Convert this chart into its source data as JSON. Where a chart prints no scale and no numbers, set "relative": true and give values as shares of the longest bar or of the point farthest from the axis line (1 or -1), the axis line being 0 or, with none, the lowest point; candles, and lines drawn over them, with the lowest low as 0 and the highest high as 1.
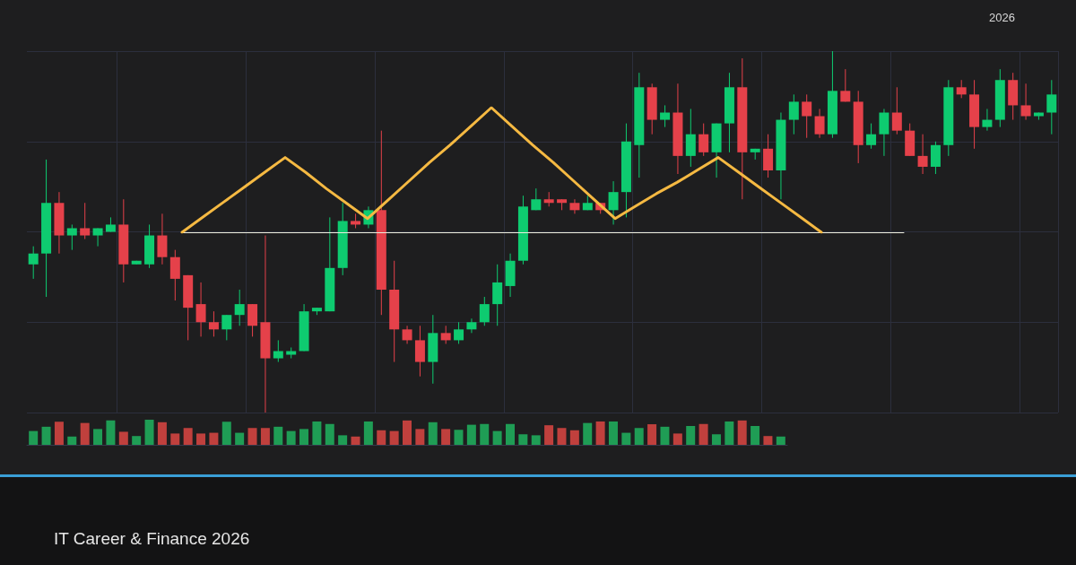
{
  "chart_data": [
    {
      "type": "candlestick",
      "relative": true,
      "grid": true,
      "annotations": [
        "2026",
        "IT Career & Finance 2026"
      ],
      "categories": [
        null,
        null,
        null,
        null,
        null,
        null,
        null,
        null,
        null,
        null,
        null,
        null,
        null,
        null,
        null,
        null,
        null,
        null,
        null,
        null,
        null,
        null,
        null,
        null,
        null,
        null,
        null,
        null,
        null,
        null,
        null,
        null,
        null,
        null,
        null,
        null,
        null,
        null,
        null,
        null,
        null,
        null,
        null,
        null,
        null,
        null,
        null,
        null,
        null,
        null,
        null,
        null,
        null,
        null,
        null,
        null,
        null,
        null,
        null,
        null,
        null,
        null,
        null,
        null,
        null,
        null,
        null,
        null,
        null,
        null,
        null,
        null,
        null,
        null,
        null,
        null,
        null,
        null,
        null,
        null
      ],
      "ohlc": [
        [
          0.41,
          0.46,
          0.37,
          0.44
        ],
        [
          0.44,
          0.7,
          0.32,
          0.58
        ],
        [
          0.58,
          0.61,
          0.44,
          0.49
        ],
        [
          0.49,
          0.52,
          0.45,
          0.51
        ],
        [
          0.51,
          0.58,
          0.48,
          0.49
        ],
        [
          0.49,
          0.51,
          0.46,
          0.51
        ],
        [
          0.5,
          0.54,
          0.5,
          0.52
        ],
        [
          0.52,
          0.59,
          0.36,
          0.41
        ],
        [
          0.41,
          0.42,
          0.41,
          0.42
        ],
        [
          0.41,
          0.52,
          0.4,
          0.49
        ],
        [
          0.49,
          0.55,
          0.41,
          0.43
        ],
        [
          0.43,
          0.45,
          0.31,
          0.37
        ],
        [
          0.38,
          0.38,
          0.2,
          0.29
        ],
        [
          0.3,
          0.36,
          0.21,
          0.25
        ],
        [
          0.25,
          0.28,
          0.21,
          0.23
        ],
        [
          0.23,
          0.27,
          0.2,
          0.27
        ],
        [
          0.27,
          0.34,
          0.24,
          0.3
        ],
        [
          0.3,
          0.3,
          0.21,
          0.24
        ],
        [
          0.25,
          0.49,
          0,
          0.15
        ],
        [
          0.15,
          0.2,
          0.14,
          0.17
        ],
        [
          0.16,
          0.18,
          0.15,
          0.17
        ],
        [
          0.17,
          0.3,
          0.17,
          0.28
        ],
        [
          0.28,
          0.29,
          0.27,
          0.29
        ],
        [
          0.28,
          0.54,
          0.28,
          0.4
        ],
        [
          0.4,
          0.58,
          0.38,
          0.53
        ],
        [
          0.53,
          0.55,
          0.51,
          0.52
        ],
        [
          0.52,
          0.57,
          0.51,
          0.56
        ],
        [
          0.56,
          0.78,
          0.27,
          0.34
        ],
        [
          0.34,
          0.42,
          0.14,
          0.23
        ],
        [
          0.23,
          0.24,
          0.19,
          0.2
        ],
        [
          0.2,
          0.24,
          0.1,
          0.14
        ],
        [
          0.14,
          0.27,
          0.08,
          0.22
        ],
        [
          0.22,
          0.24,
          0.19,
          0.2
        ],
        [
          0.2,
          0.25,
          0.19,
          0.23
        ],
        [
          0.23,
          0.26,
          0.22,
          0.25
        ],
        [
          0.25,
          0.32,
          0.24,
          0.3
        ],
        [
          0.3,
          0.41,
          0.24,
          0.36
        ],
        [
          0.35,
          0.44,
          0.32,
          0.42
        ],
        [
          0.42,
          0.6,
          0.41,
          0.57
        ],
        [
          0.56,
          0.62,
          0.56,
          0.59
        ],
        [
          0.59,
          0.61,
          0.57,
          0.58
        ],
        [
          0.59,
          0.59,
          0.56,
          0.58
        ],
        [
          0.58,
          0.59,
          0.55,
          0.56
        ],
        [
          0.56,
          0.6,
          0.56,
          0.58
        ],
        [
          0.58,
          0.58,
          0.55,
          0.56
        ],
        [
          0.56,
          0.64,
          0.52,
          0.61
        ],
        [
          0.61,
          0.8,
          0.54,
          0.75
        ],
        [
          0.74,
          0.94,
          0.65,
          0.9
        ],
        [
          0.9,
          0.91,
          0.77,
          0.81
        ],
        [
          0.81,
          0.85,
          0.79,
          0.83
        ],
        [
          0.83,
          0.91,
          0.66,
          0.71
        ],
        [
          0.71,
          0.84,
          0.68,
          0.77
        ],
        [
          0.77,
          0.8,
          0.71,
          0.72
        ],
        [
          0.72,
          0.8,
          0.65,
          0.8
        ],
        [
          0.8,
          0.94,
          0.72,
          0.9
        ],
        [
          0.9,
          0.98,
          0.59,
          0.72
        ],
        [
          0.72,
          0.73,
          0.7,
          0.73
        ],
        [
          0.73,
          0.77,
          0.65,
          0.67
        ],
        [
          0.67,
          0.83,
          0.59,
          0.81
        ],
        [
          0.81,
          0.88,
          0.77,
          0.86
        ],
        [
          0.86,
          0.88,
          0.76,
          0.82
        ],
        [
          0.82,
          0.84,
          0.76,
          0.77
        ],
        [
          0.77,
          1,
          0.76,
          0.89
        ],
        [
          0.89,
          0.95,
          0.86,
          0.86
        ],
        [
          0.86,
          0.89,
          0.69,
          0.74
        ],
        [
          0.74,
          0.8,
          0.73,
          0.77
        ],
        [
          0.77,
          0.84,
          0.71,
          0.83
        ],
        [
          0.83,
          0.9,
          0.77,
          0.78
        ],
        [
          0.78,
          0.8,
          0.71,
          0.71
        ],
        [
          0.71,
          0.77,
          0.66,
          0.68
        ],
        [
          0.68,
          0.75,
          0.66,
          0.74
        ],
        [
          0.74,
          0.92,
          0.71,
          0.9
        ],
        [
          0.9,
          0.92,
          0.87,
          0.88
        ],
        [
          0.88,
          0.92,
          0.73,
          0.79
        ],
        [
          0.79,
          0.84,
          0.78,
          0.81
        ],
        [
          0.81,
          0.95,
          0.79,
          0.92
        ],
        [
          0.92,
          0.94,
          0.81,
          0.85
        ],
        [
          0.85,
          0.91,
          0.81,
          0.82
        ],
        [
          0.82,
          0.83,
          0.81,
          0.83
        ],
        [
          0.83,
          0.92,
          0.77,
          0.88
        ]
      ]
    },
    {
      "type": "bar",
      "relative": true,
      "categories": [
        null,
        null,
        null,
        null,
        null,
        null,
        null,
        null,
        null,
        null,
        null,
        null,
        null,
        null,
        null,
        null,
        null,
        null,
        null,
        null,
        null,
        null,
        null,
        null,
        null,
        null,
        null,
        null,
        null,
        null,
        null,
        null,
        null,
        null,
        null,
        null,
        null,
        null,
        null,
        null,
        null,
        null,
        null,
        null,
        null,
        null,
        null,
        null,
        null,
        null,
        null,
        null,
        null,
        null,
        null,
        null,
        null,
        null,
        null
      ],
      "values": [
        0.55,
        0.72,
        0.92,
        0.33,
        0.87,
        0.63,
        0.97,
        0.52,
        0.35,
        1,
        0.9,
        0.45,
        0.67,
        0.45,
        0.48,
        0.92,
        0.48,
        0.67,
        0.67,
        0.72,
        0.55,
        0.63,
        0.93,
        0.83,
        0.38,
        0.33,
        0.93,
        0.58,
        0.55,
        0.97,
        0.63,
        0.9,
        0.63,
        0.6,
        0.8,
        0.83,
        0.55,
        0.83,
        0.42,
        0.38,
        0.78,
        0.67,
        0.58,
        0.87,
        0.93,
        0.93,
        0.48,
        0.67,
        0.82,
        0.72,
        0.45,
        0.75,
        0.83,
        0.42,
        0.93,
        0.97,
        0.75,
        0.35,
        0.33
      ],
      "colors": [
        "#1f9d55",
        "#1f9d55",
        "#c0403d",
        "#1f9d55",
        "#c0403d",
        "#1f9d55",
        "#1f9d55",
        "#c0403d",
        "#1f9d55",
        "#1f9d55",
        "#c0403d",
        "#c0403d",
        "#c0403d",
        "#c0403d",
        "#c0403d",
        "#1f9d55",
        "#1f9d55",
        "#c0403d",
        "#c0403d",
        "#1f9d55",
        "#1f9d55",
        "#1f9d55",
        "#1f9d55",
        "#1f9d55",
        "#1f9d55",
        "#c0403d",
        "#1f9d55",
        "#c0403d",
        "#c0403d",
        "#c0403d",
        "#c0403d",
        "#1f9d55",
        "#c0403d",
        "#1f9d55",
        "#1f9d55",
        "#1f9d55",
        "#1f9d55",
        "#1f9d55",
        "#1f9d55",
        "#1f9d55",
        "#c0403d",
        "#c0403d",
        "#c0403d",
        "#1f9d55",
        "#c0403d",
        "#1f9d55",
        "#1f9d55",
        "#1f9d55",
        "#c0403d",
        "#1f9d55",
        "#c0403d",
        "#1f9d55",
        "#c0403d",
        "#1f9d55",
        "#1f9d55",
        "#c0403d",
        "#1f9d55",
        "#c0403d",
        "#1f9d55"
      ]
    },
    {
      "type": "line",
      "relative": true,
      "categories": [
        null,
        null,
        null,
        null,
        null,
        null,
        null,
        null,
        null,
        null,
        null,
        null,
        null,
        null,
        null,
        null,
        null,
        null,
        null,
        null,
        null,
        null,
        null,
        null,
        null,
        null,
        null,
        null,
        null,
        null,
        null,
        null,
        null,
        null,
        null,
        null
      ],
      "series": [
        {
          "color": "#f5b942",
          "values": [
            0,
            0.12,
            0.24,
            0.36,
            0.48,
            0.6,
            0.48,
            0.35,
            0.23,
            0.11,
            0.26,
            0.41,
            0.56,
            0.7,
            0.85,
            1,
            0.85,
            0.7,
            0.56,
            0.41,
            0.26,
            0.11,
            0.21,
            0.31,
            0.4,
            0.5,
            0.6,
            0.48,
            0.36,
            0.24,
            0.12,
            0,
            null,
            null,
            null,
            null
          ]
        }
      ]
    }
  ]
}
